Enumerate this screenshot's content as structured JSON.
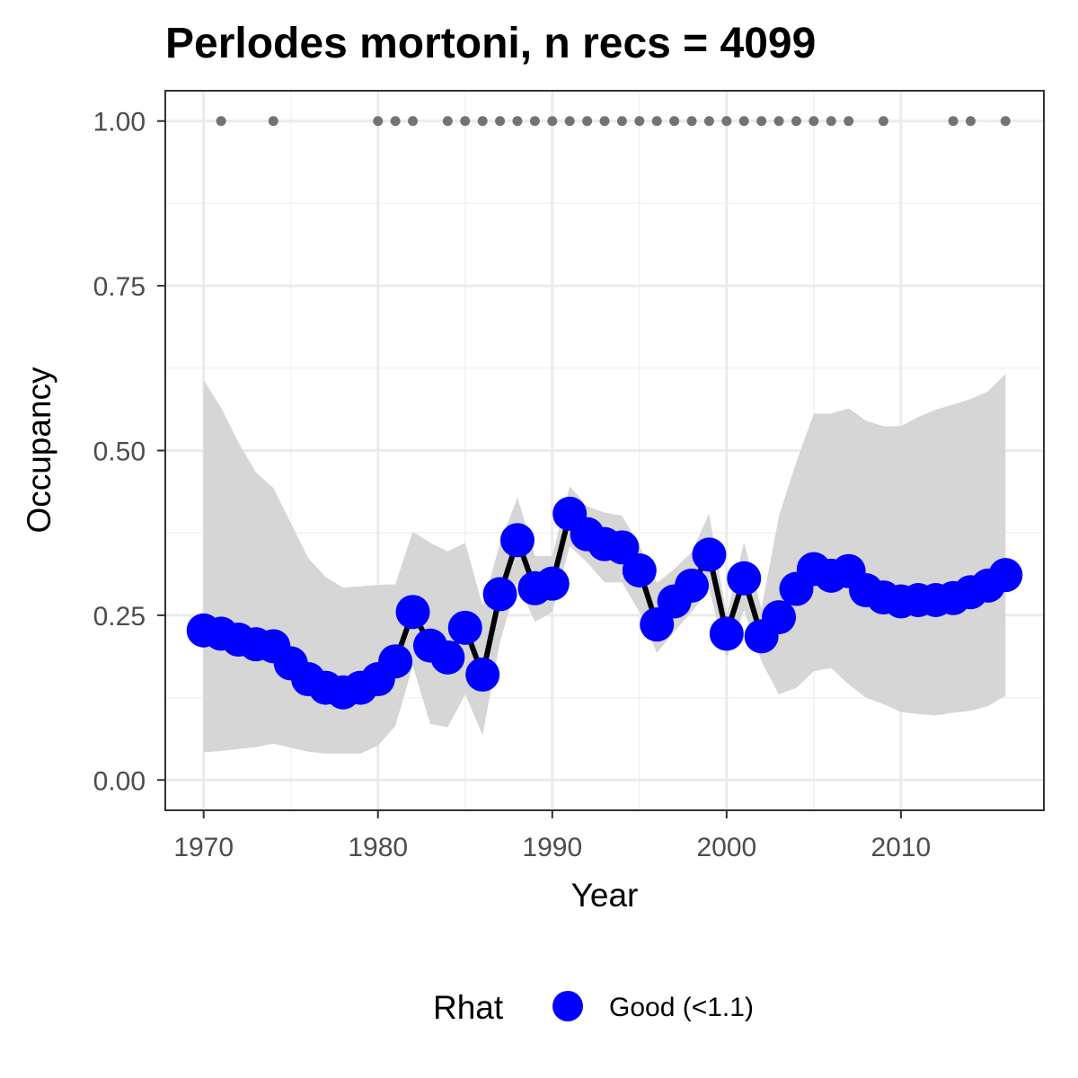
{
  "chart_data": {
    "type": "line",
    "title": "Perlodes mortoni, n recs = 4099",
    "xlabel": "Year",
    "ylabel": "Occupancy",
    "xlim": [
      1967.8,
      2018.2
    ],
    "ylim": [
      -0.046,
      1.046
    ],
    "x_ticks": [
      1970,
      1980,
      1990,
      2000,
      2010
    ],
    "x_tick_labels": [
      "1970",
      "1980",
      "1990",
      "2000",
      "2010"
    ],
    "y_ticks": [
      0,
      0.25,
      0.5,
      0.75,
      1.0
    ],
    "y_tick_labels": [
      "0.00",
      "0.25",
      "0.50",
      "0.75",
      "1.00"
    ],
    "grid": true,
    "legend_position": "bottom",
    "legend": {
      "title": "Rhat",
      "entries": [
        {
          "label": "Good (<1.1)",
          "color": "#0000ff"
        }
      ]
    },
    "colors": {
      "points": "#0000ff",
      "line": "#000000",
      "ribbon": "#d6d6d6",
      "record_points": "#737373"
    },
    "series": [
      {
        "name": "Occupancy",
        "x": [
          1970,
          1971,
          1972,
          1973,
          1974,
          1975,
          1976,
          1977,
          1978,
          1979,
          1980,
          1981,
          1982,
          1983,
          1984,
          1985,
          1986,
          1987,
          1988,
          1989,
          1990,
          1991,
          1992,
          1993,
          1994,
          1995,
          1996,
          1997,
          1998,
          1999,
          2000,
          2001,
          2002,
          2003,
          2004,
          2005,
          2006,
          2007,
          2008,
          2009,
          2010,
          2011,
          2012,
          2013,
          2014,
          2015,
          2016
        ],
        "y": [
          0.227,
          0.222,
          0.213,
          0.206,
          0.203,
          0.177,
          0.153,
          0.14,
          0.133,
          0.14,
          0.153,
          0.18,
          0.255,
          0.204,
          0.186,
          0.231,
          0.16,
          0.282,
          0.364,
          0.291,
          0.298,
          0.404,
          0.373,
          0.358,
          0.353,
          0.318,
          0.236,
          0.271,
          0.295,
          0.342,
          0.222,
          0.306,
          0.218,
          0.247,
          0.29,
          0.32,
          0.31,
          0.317,
          0.288,
          0.277,
          0.271,
          0.273,
          0.273,
          0.276,
          0.285,
          0.295,
          0.311
        ],
        "lower": [
          0.042,
          0.044,
          0.047,
          0.05,
          0.055,
          0.049,
          0.043,
          0.04,
          0.04,
          0.04,
          0.052,
          0.082,
          0.173,
          0.085,
          0.08,
          0.13,
          0.068,
          0.21,
          0.3,
          0.24,
          0.255,
          0.355,
          0.33,
          0.3,
          0.3,
          0.255,
          0.193,
          0.225,
          0.255,
          0.29,
          0.185,
          0.258,
          0.18,
          0.13,
          0.14,
          0.165,
          0.17,
          0.145,
          0.125,
          0.115,
          0.103,
          0.1,
          0.098,
          0.102,
          0.105,
          0.112,
          0.128
        ],
        "upper": [
          0.607,
          0.565,
          0.512,
          0.467,
          0.443,
          0.39,
          0.337,
          0.308,
          0.292,
          0.294,
          0.296,
          0.297,
          0.377,
          0.36,
          0.347,
          0.36,
          0.265,
          0.359,
          0.429,
          0.34,
          0.34,
          0.446,
          0.415,
          0.406,
          0.401,
          0.356,
          0.299,
          0.32,
          0.346,
          0.404,
          0.25,
          0.361,
          0.26,
          0.4,
          0.483,
          0.556,
          0.556,
          0.564,
          0.545,
          0.537,
          0.537,
          0.551,
          0.562,
          0.57,
          0.578,
          0.59,
          0.616
        ]
      },
      {
        "name": "Records",
        "x": [
          1971,
          1974,
          1980,
          1981,
          1982,
          1984,
          1985,
          1986,
          1987,
          1988,
          1989,
          1990,
          1991,
          1992,
          1993,
          1994,
          1995,
          1996,
          1997,
          1998,
          1999,
          2000,
          2001,
          2002,
          2003,
          2004,
          2005,
          2006,
          2007,
          2009,
          2013,
          2014,
          2016
        ],
        "y": [
          1,
          1,
          1,
          1,
          1,
          1,
          1,
          1,
          1,
          1,
          1,
          1,
          1,
          1,
          1,
          1,
          1,
          1,
          1,
          1,
          1,
          1,
          1,
          1,
          1,
          1,
          1,
          1,
          1,
          1,
          1,
          1,
          1
        ]
      }
    ]
  }
}
